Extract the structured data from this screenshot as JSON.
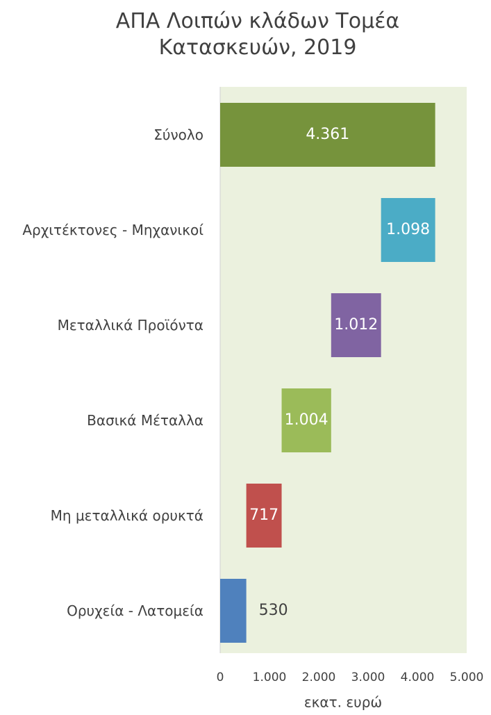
{
  "chart_data": {
    "type": "waterfall",
    "title": "ΑΠΑ Λοιπών κλάδων Τομέα",
    "subtitle": "Κατασκευών, 2019",
    "x_label": "εκατ. ευρώ",
    "categories": [
      "Σύνολο",
      "Αρχιτέκτονες - Μηχανικοί",
      "Μεταλλικά Προϊόντα",
      "Βασικά Μέταλλα",
      "Μη μεταλλικά ορυκτά",
      "Ορυχεία - Λατομεία"
    ],
    "values": [
      4361,
      1098,
      1012,
      1004,
      717,
      530
    ],
    "value_labels": [
      "4.361",
      "1.098",
      "1.012",
      "1.004",
      "717",
      "530"
    ],
    "colors": [
      "#76933c",
      "#4bacc6",
      "#8064a2",
      "#9bbb59",
      "#c0504d",
      "#4f81bd"
    ],
    "xlim": [
      0,
      5000
    ],
    "xticks": [
      0,
      {
        "value": 1000,
        "label": "1.000"
      },
      {
        "value": 2000,
        "label": "2.000"
      },
      {
        "value": 3000,
        "label": "3.000"
      },
      {
        "value": 4000,
        "label": "4.000"
      },
      {
        "value": 5000,
        "label": "5.000"
      }
    ]
  }
}
